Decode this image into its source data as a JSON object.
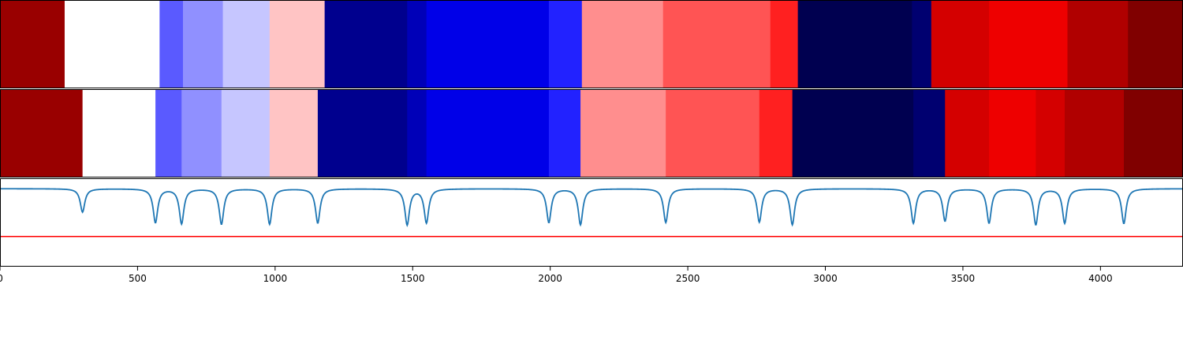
{
  "chart_data": [
    {
      "type": "heatmap",
      "panel": "top",
      "colormap": "seismic",
      "segments": [
        {
          "start": 0,
          "end": 235,
          "color": "#990000"
        },
        {
          "start": 235,
          "end": 580,
          "color": "#ffffff"
        },
        {
          "start": 580,
          "end": 665,
          "color": "#5a5aff"
        },
        {
          "start": 665,
          "end": 810,
          "color": "#9090ff"
        },
        {
          "start": 810,
          "end": 980,
          "color": "#c6c6ff"
        },
        {
          "start": 980,
          "end": 1180,
          "color": "#ffc4c4"
        },
        {
          "start": 1180,
          "end": 1480,
          "color": "#00008e"
        },
        {
          "start": 1480,
          "end": 1550,
          "color": "#0000b8"
        },
        {
          "start": 1550,
          "end": 1995,
          "color": "#0000e8"
        },
        {
          "start": 1995,
          "end": 2115,
          "color": "#2222ff"
        },
        {
          "start": 2115,
          "end": 2410,
          "color": "#ff8e8e"
        },
        {
          "start": 2410,
          "end": 2800,
          "color": "#ff5454"
        },
        {
          "start": 2800,
          "end": 2900,
          "color": "#ff2020"
        },
        {
          "start": 2900,
          "end": 3315,
          "color": "#000050"
        },
        {
          "start": 3315,
          "end": 3385,
          "color": "#000070"
        },
        {
          "start": 3385,
          "end": 3595,
          "color": "#d40000"
        },
        {
          "start": 3595,
          "end": 3880,
          "color": "#ee0000"
        },
        {
          "start": 3880,
          "end": 4100,
          "color": "#b00000"
        },
        {
          "start": 4100,
          "end": 4300,
          "color": "#800000"
        }
      ]
    },
    {
      "type": "heatmap",
      "panel": "middle",
      "colormap": "seismic",
      "segments": [
        {
          "start": 0,
          "end": 300,
          "color": "#990000"
        },
        {
          "start": 300,
          "end": 565,
          "color": "#ffffff"
        },
        {
          "start": 565,
          "end": 660,
          "color": "#5a5aff"
        },
        {
          "start": 660,
          "end": 805,
          "color": "#9090ff"
        },
        {
          "start": 805,
          "end": 980,
          "color": "#c6c6ff"
        },
        {
          "start": 980,
          "end": 1155,
          "color": "#ffc4c4"
        },
        {
          "start": 1155,
          "end": 1480,
          "color": "#00008e"
        },
        {
          "start": 1480,
          "end": 1550,
          "color": "#0000b8"
        },
        {
          "start": 1550,
          "end": 1995,
          "color": "#0000e8"
        },
        {
          "start": 1995,
          "end": 2110,
          "color": "#2222ff"
        },
        {
          "start": 2110,
          "end": 2420,
          "color": "#ff8e8e"
        },
        {
          "start": 2420,
          "end": 2760,
          "color": "#ff5454"
        },
        {
          "start": 2760,
          "end": 2880,
          "color": "#ff2020"
        },
        {
          "start": 2880,
          "end": 3320,
          "color": "#000050"
        },
        {
          "start": 3320,
          "end": 3435,
          "color": "#000070"
        },
        {
          "start": 3435,
          "end": 3595,
          "color": "#d40000"
        },
        {
          "start": 3595,
          "end": 3765,
          "color": "#ee0000"
        },
        {
          "start": 3765,
          "end": 3870,
          "color": "#d40000"
        },
        {
          "start": 3870,
          "end": 4085,
          "color": "#b00000"
        },
        {
          "start": 4085,
          "end": 4300,
          "color": "#800000"
        }
      ]
    },
    {
      "type": "line",
      "panel": "bottom",
      "xlim": [
        0,
        4300
      ],
      "ylim": [
        -1.5,
        0.2
      ],
      "baseline": 0,
      "series": [
        {
          "color": "#1f77b4",
          "dips": [
            {
              "x": 300,
              "depth": 0.45
            },
            {
              "x": 565,
              "depth": 0.65
            },
            {
              "x": 660,
              "depth": 0.67
            },
            {
              "x": 805,
              "depth": 0.68
            },
            {
              "x": 980,
              "depth": 0.68
            },
            {
              "x": 1155,
              "depth": 0.66
            },
            {
              "x": 1480,
              "depth": 0.69
            },
            {
              "x": 1550,
              "depth": 0.65
            },
            {
              "x": 1995,
              "depth": 0.65
            },
            {
              "x": 2110,
              "depth": 0.69
            },
            {
              "x": 2420,
              "depth": 0.65
            },
            {
              "x": 2760,
              "depth": 0.64
            },
            {
              "x": 2880,
              "depth": 0.69
            },
            {
              "x": 3320,
              "depth": 0.66
            },
            {
              "x": 3435,
              "depth": 0.62
            },
            {
              "x": 3595,
              "depth": 0.66
            },
            {
              "x": 3765,
              "depth": 0.69
            },
            {
              "x": 3870,
              "depth": 0.66
            },
            {
              "x": 4085,
              "depth": 0.67
            }
          ]
        }
      ],
      "hlines": [
        {
          "y": -0.92,
          "color": "#ff0000"
        }
      ],
      "xticks": [
        0,
        500,
        1000,
        1500,
        2000,
        2500,
        3000,
        3500,
        4000
      ]
    }
  ]
}
